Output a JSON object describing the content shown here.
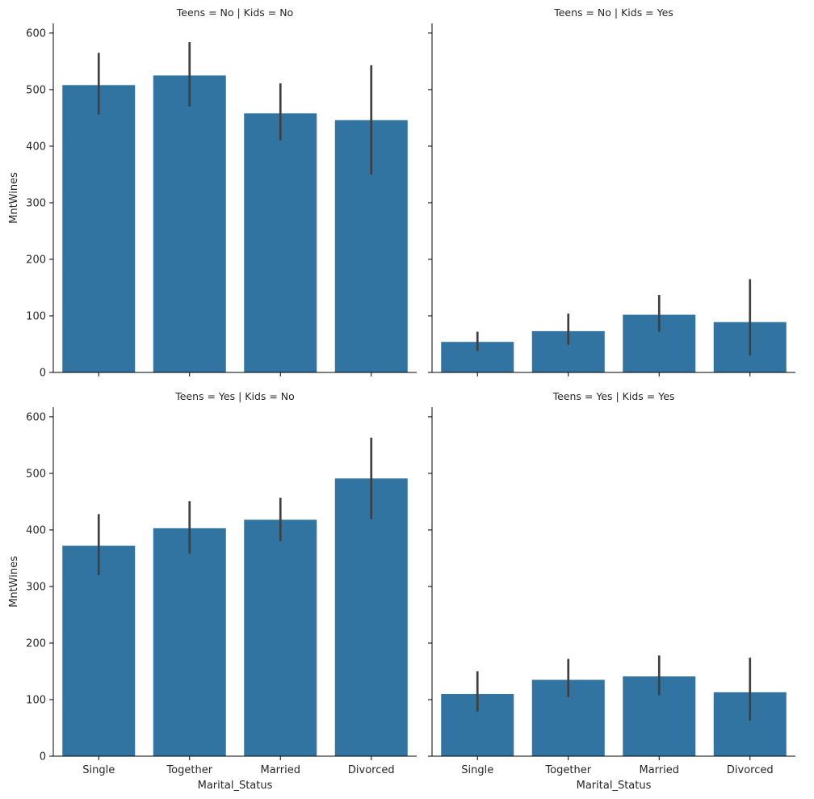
{
  "chart_data": {
    "type": "bar",
    "categories": [
      "Single",
      "Together",
      "Married",
      "Divorced"
    ],
    "ylim": [
      0,
      600
    ],
    "yticks": [
      0,
      100,
      200,
      300,
      400,
      500,
      600
    ],
    "ytick_labels": [
      "0",
      "100",
      "200",
      "300",
      "400",
      "500",
      "600"
    ],
    "xlabel": "Marital_Status",
    "ylabel": "MntWines",
    "bar_color": "#3274a1",
    "errbar_color": "#3f3f3f",
    "grid": false,
    "facets": [
      {
        "title": "Teens = No | Kids = No",
        "values": [
          508,
          525,
          458,
          446
        ],
        "ci_low": [
          456,
          470,
          410,
          350
        ],
        "ci_high": [
          565,
          584,
          511,
          543
        ]
      },
      {
        "title": "Teens = No | Kids = Yes",
        "values": [
          54,
          73,
          102,
          89
        ],
        "ci_low": [
          38,
          49,
          72,
          30
        ],
        "ci_high": [
          72,
          104,
          137,
          165
        ]
      },
      {
        "title": "Teens = Yes | Kids = No",
        "values": [
          372,
          403,
          418,
          491
        ],
        "ci_low": [
          320,
          358,
          380,
          419
        ],
        "ci_high": [
          428,
          451,
          457,
          563
        ]
      },
      {
        "title": "Teens = Yes | Kids = Yes",
        "values": [
          110,
          135,
          141,
          113
        ],
        "ci_low": [
          79,
          104,
          108,
          63
        ],
        "ci_high": [
          150,
          172,
          178,
          174
        ]
      }
    ]
  }
}
